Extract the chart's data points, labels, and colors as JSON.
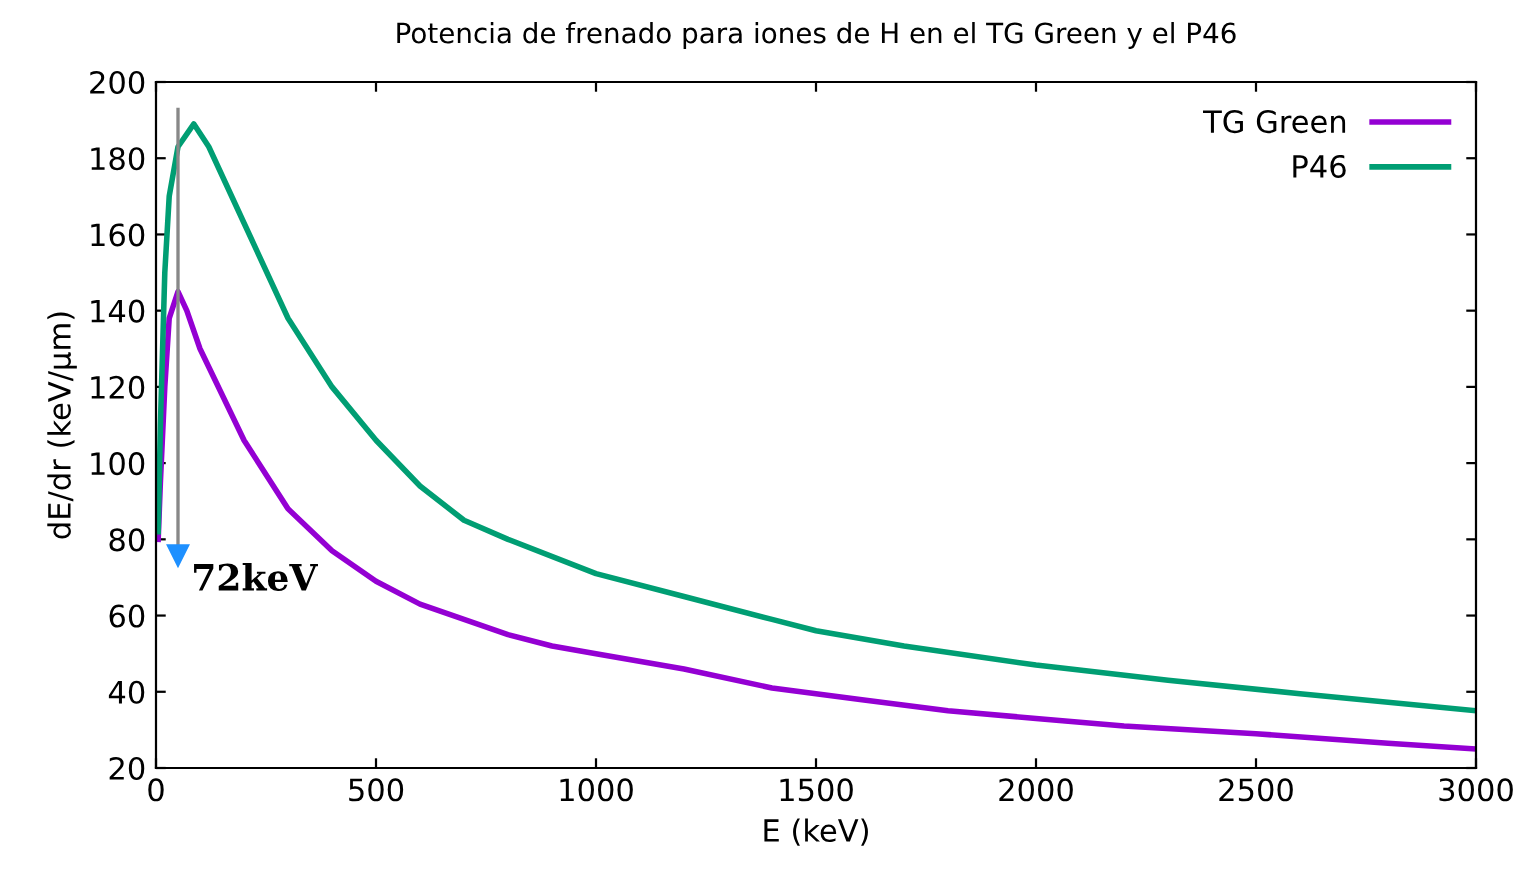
{
  "chart_data": {
    "type": "line",
    "title": "Potencia de frenado para iones de H en el TG Green y el P46",
    "xlabel": "E (keV)",
    "ylabel": "dE/dr (keV/μm)",
    "xlim": [
      0,
      3000
    ],
    "ylim": [
      20,
      200
    ],
    "xticks": [
      0,
      500,
      1000,
      1500,
      2000,
      2500,
      3000
    ],
    "yticks": [
      20,
      40,
      60,
      80,
      100,
      120,
      140,
      160,
      180,
      200
    ],
    "grid": false,
    "legend": "top right",
    "marker": "none",
    "line_style": "solid",
    "series": [
      {
        "name": "TG Green",
        "color": "#9400d3",
        "x": [
          5,
          10,
          20,
          30,
          50,
          70,
          100,
          150,
          200,
          300,
          400,
          500,
          600,
          700,
          800,
          900,
          1000,
          1200,
          1400,
          1600,
          1800,
          2000,
          2200,
          2500,
          2800,
          3000
        ],
        "values": [
          80,
          95,
          120,
          138,
          145,
          140,
          130,
          118,
          106,
          88,
          77,
          69,
          63,
          59,
          55,
          52,
          50,
          46,
          41,
          38,
          35,
          33,
          31,
          29,
          26.5,
          25
        ]
      },
      {
        "name": "P46",
        "color": "#009e73",
        "x": [
          5,
          10,
          20,
          30,
          50,
          86,
          120,
          200,
          300,
          400,
          500,
          600,
          700,
          800,
          1000,
          1200,
          1400,
          1500,
          1700,
          2000,
          2300,
          2600,
          3000
        ],
        "values": [
          82,
          110,
          150,
          170,
          183,
          189,
          183,
          163,
          138,
          120,
          106,
          94,
          85,
          80,
          71,
          65,
          59,
          56,
          52,
          47,
          43,
          39.5,
          35
        ]
      }
    ],
    "ref_lines": [
      {
        "axis": "x",
        "value": 50,
        "label": "72keV",
        "color": "#888888"
      }
    ]
  }
}
